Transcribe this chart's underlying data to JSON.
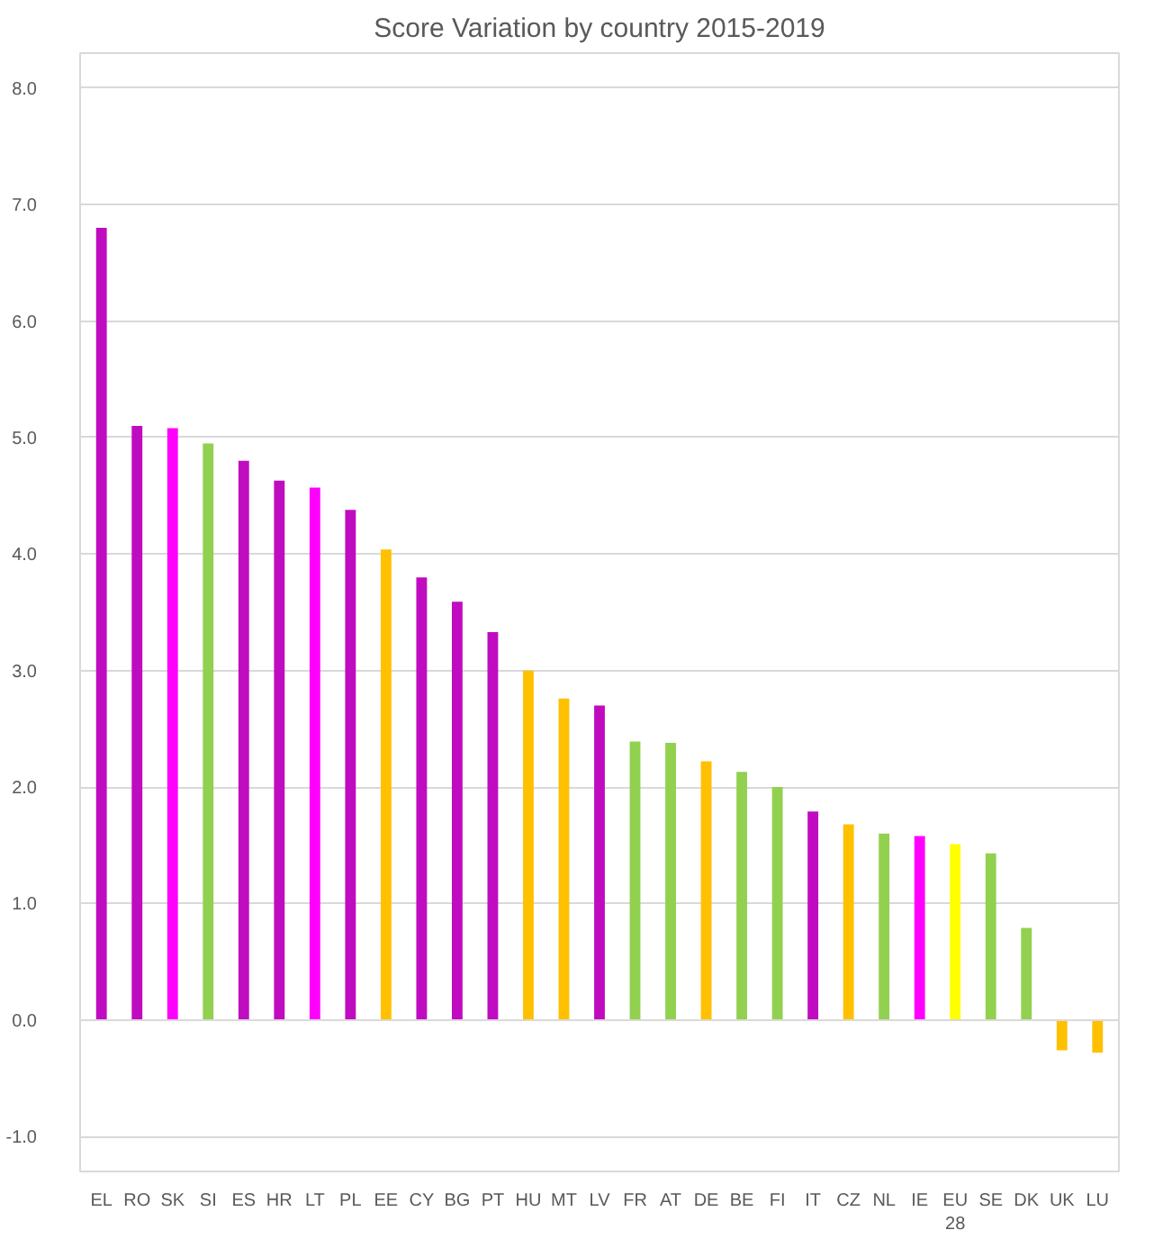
{
  "chart_data": {
    "type": "bar",
    "title": "Score Variation by country 2015-2019",
    "categories": [
      "EL",
      "RO",
      "SK",
      "SI",
      "ES",
      "HR",
      "LT",
      "PL",
      "EE",
      "CY",
      "BG",
      "PT",
      "HU",
      "MT",
      "LV",
      "FR",
      "AT",
      "DE",
      "BE",
      "FI",
      "IT",
      "CZ",
      "NL",
      "IE",
      "EU\n28",
      "SE",
      "DK",
      "UK",
      "LU"
    ],
    "values": [
      6.8,
      5.1,
      5.08,
      4.95,
      4.8,
      4.63,
      4.57,
      4.38,
      4.04,
      3.8,
      3.59,
      3.33,
      3.0,
      2.76,
      2.7,
      2.39,
      2.38,
      2.22,
      2.13,
      2.0,
      1.79,
      1.68,
      1.6,
      1.58,
      1.51,
      1.43,
      0.79,
      -0.26,
      -0.28
    ],
    "colors": [
      "#c00cc0",
      "#c00cc0",
      "#ff00ff",
      "#92d050",
      "#c00cc0",
      "#c00cc0",
      "#ff00ff",
      "#c00cc0",
      "#ffc000",
      "#c00cc0",
      "#c00cc0",
      "#c00cc0",
      "#ffc000",
      "#ffc000",
      "#c00cc0",
      "#92d050",
      "#92d050",
      "#ffc000",
      "#92d050",
      "#92d050",
      "#c00cc0",
      "#ffc000",
      "#92d050",
      "#ff00ff",
      "#ffff00",
      "#92d050",
      "#92d050",
      "#ffc000",
      "#ffc000"
    ],
    "ylim": [
      -1.3,
      8.3
    ],
    "yticks": [
      {
        "value": -1,
        "label": "-1.0"
      },
      {
        "value": 0,
        "label": "0.0"
      },
      {
        "value": 1,
        "label": "1.0"
      },
      {
        "value": 2,
        "label": "2.0"
      },
      {
        "value": 3,
        "label": "3.0"
      },
      {
        "value": 4,
        "label": "4.0"
      },
      {
        "value": 5,
        "label": "5.0"
      },
      {
        "value": 6,
        "label": "6.0"
      },
      {
        "value": 7,
        "label": "7.0"
      },
      {
        "value": 8,
        "label": "8.0"
      }
    ],
    "grid": "y"
  }
}
